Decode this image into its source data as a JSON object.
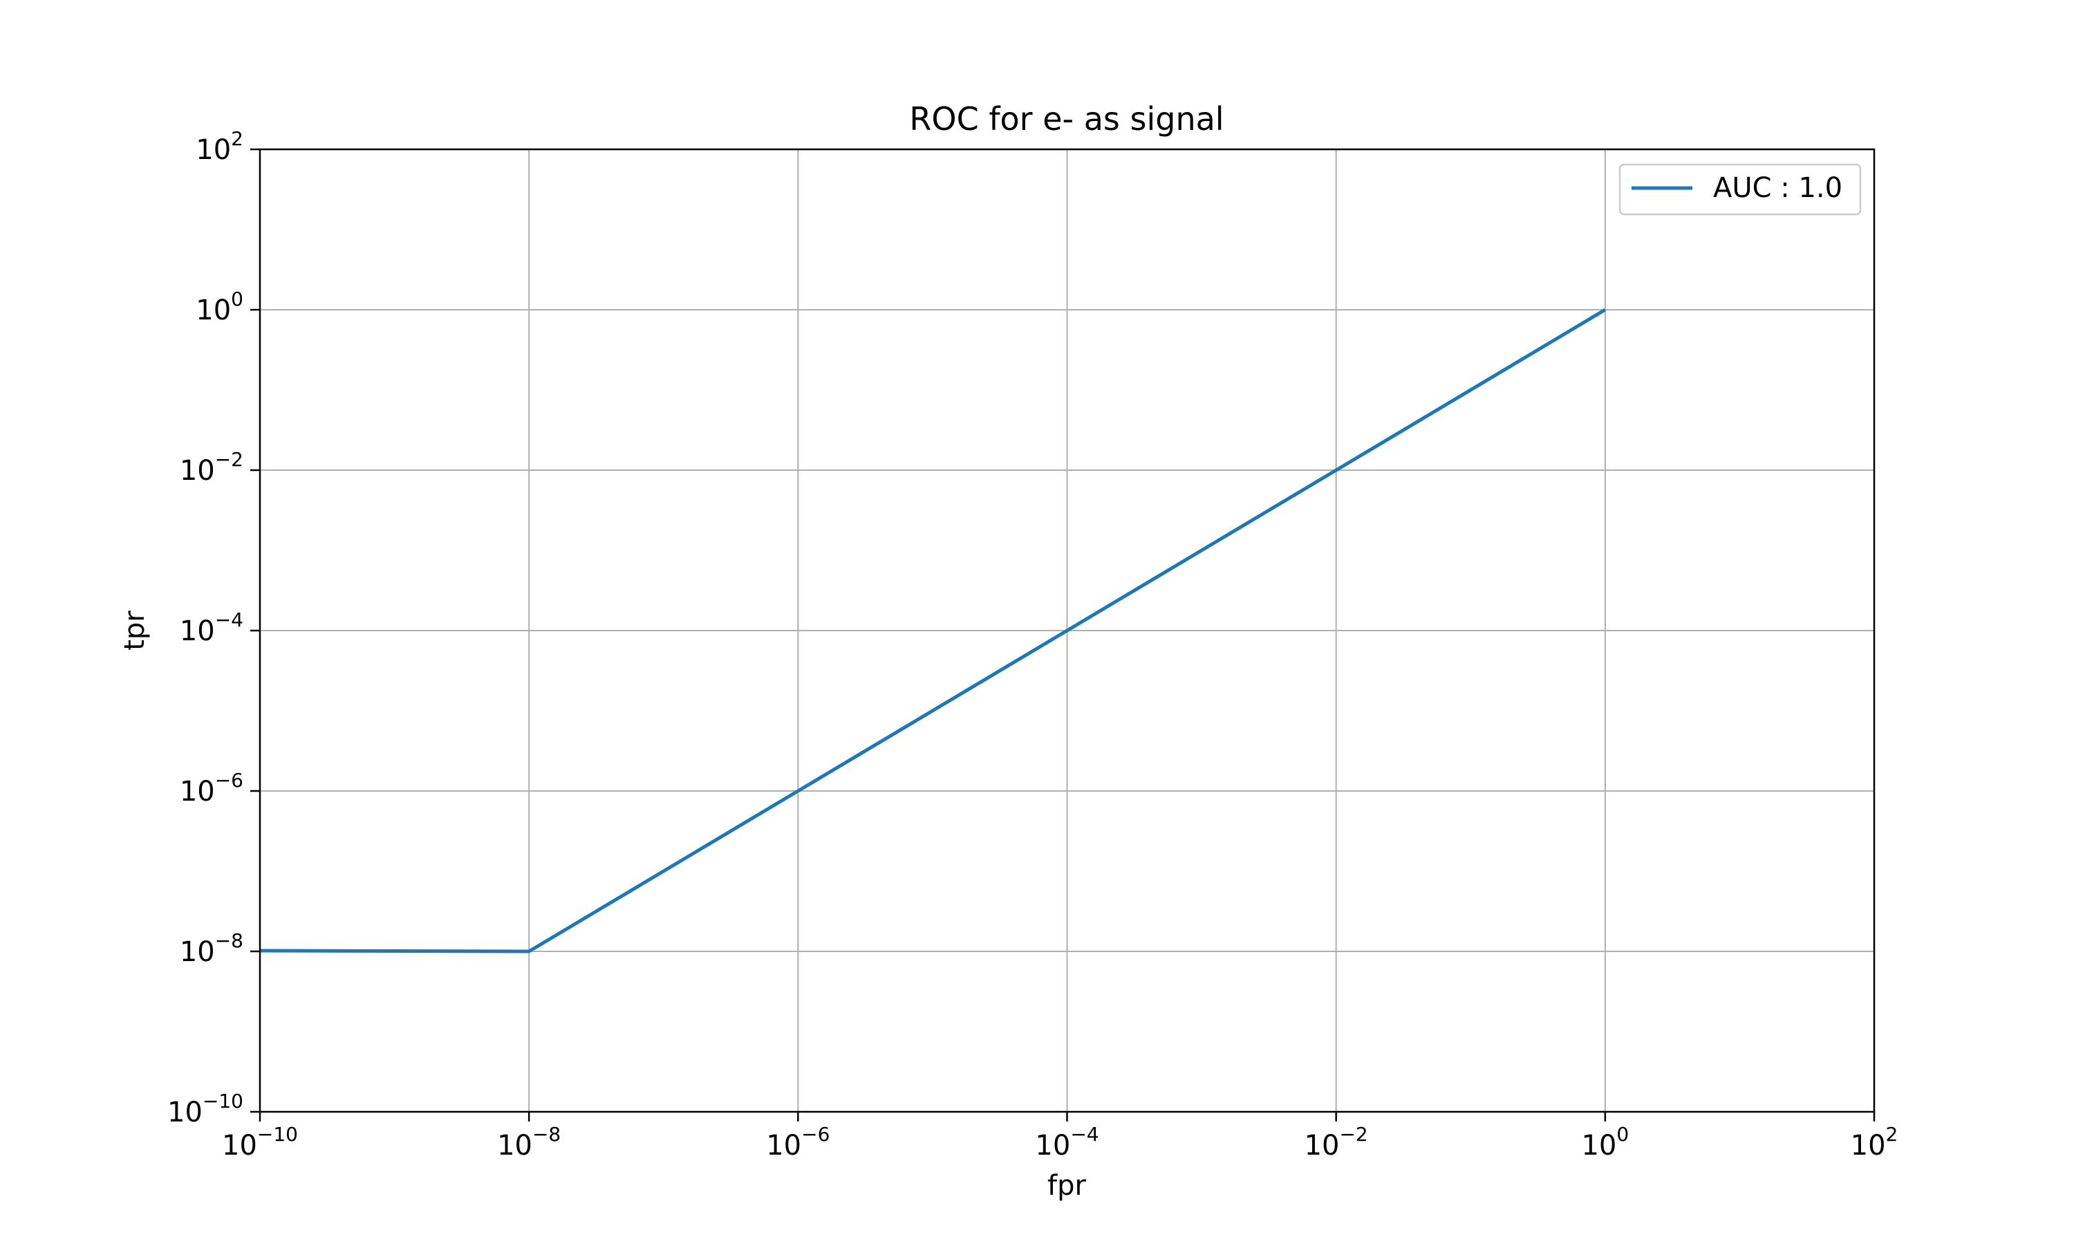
{
  "chart_data": {
    "type": "line",
    "title": "ROC for e- as signal",
    "xlabel": "fpr",
    "ylabel": "tpr",
    "xscale": "log",
    "yscale": "log",
    "xlim": [
      1e-10,
      100
    ],
    "ylim": [
      1e-10,
      100
    ],
    "grid": true,
    "legend_position": "upper-right",
    "x_tick_exponents": [
      "−10",
      "−8",
      "−6",
      "−4",
      "−2",
      "0",
      "2"
    ],
    "y_tick_exponents": [
      "−10",
      "−8",
      "−6",
      "−4",
      "−2",
      "0",
      "2"
    ],
    "series": [
      {
        "name": "AUC : 1.0",
        "color": "#1f77b4",
        "x": [
          1e-10,
          1e-08,
          1e-06,
          0.0001,
          0.01,
          1
        ],
        "y": [
          1.02e-08,
          1e-08,
          1e-06,
          0.0001,
          0.01,
          1
        ]
      }
    ]
  },
  "colors": {
    "grid": "#b0b0b0",
    "axes": "#000000",
    "legend_border": "#cccccc"
  }
}
